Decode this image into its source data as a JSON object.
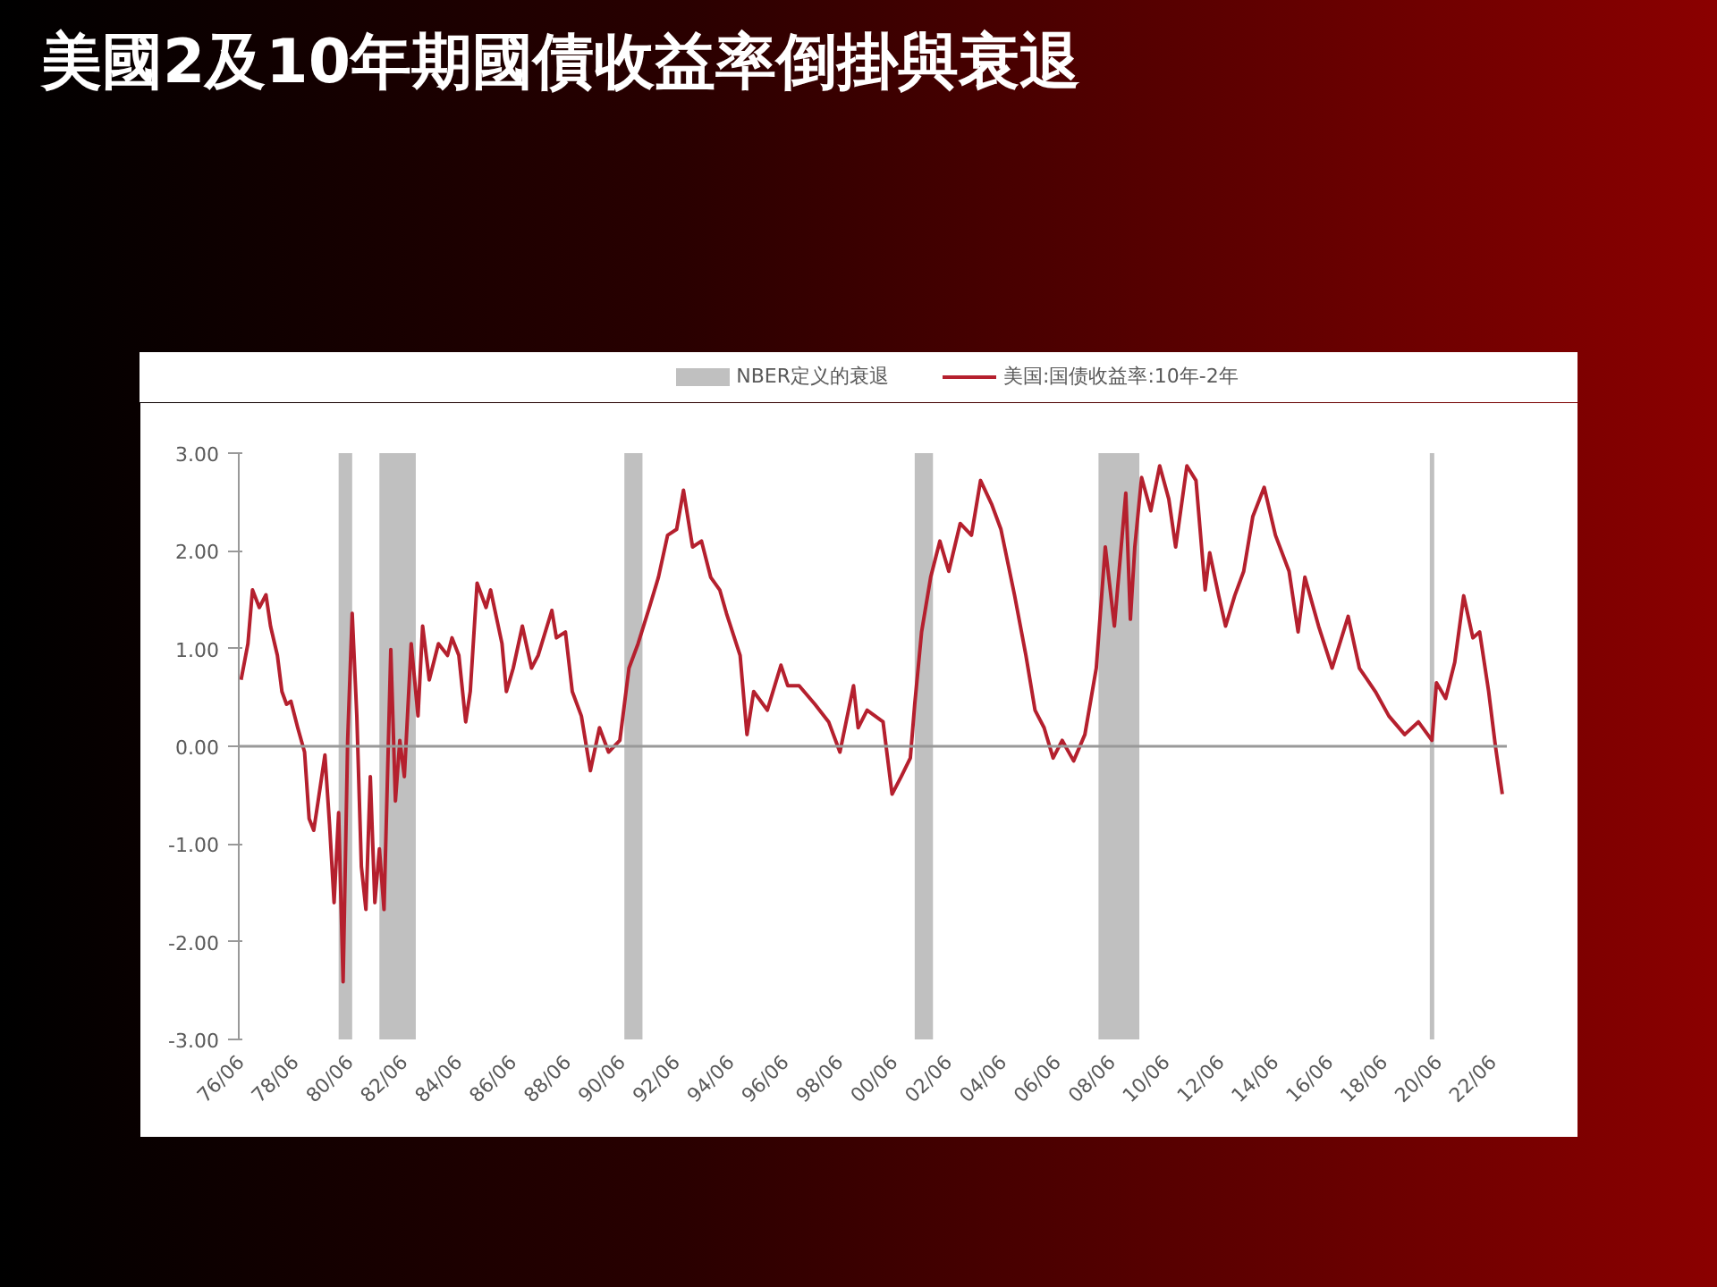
{
  "chart_data": {
    "type": "line",
    "title": "美國2及10年期國債收益率倒掛與衰退",
    "x": [
      "1976-06",
      "1976-09",
      "1976-11",
      "1977-02",
      "1977-05",
      "1977-07",
      "1977-10",
      "1977-12",
      "1978-02",
      "1978-04",
      "1978-07",
      "1978-10",
      "1978-12",
      "1979-02",
      "1979-04",
      "1979-07",
      "1979-09",
      "1979-11",
      "1980-01",
      "1980-03",
      "1980-05",
      "1980-07",
      "1980-09",
      "1980-11",
      "1981-01",
      "1981-03",
      "1981-05",
      "1981-07",
      "1981-09",
      "1981-12",
      "1982-02",
      "1982-04",
      "1982-06",
      "1982-09",
      "1982-12",
      "1983-02",
      "1983-05",
      "1983-09",
      "1984-01",
      "1984-03",
      "1984-06",
      "1984-09",
      "1984-11",
      "1985-02",
      "1985-06",
      "1985-08",
      "1986-01",
      "1986-03",
      "1986-06",
      "1986-10",
      "1987-02",
      "1987-05",
      "1987-11",
      "1988-01",
      "1988-05",
      "1988-08",
      "1988-12",
      "1989-04",
      "1989-08",
      "1989-12",
      "1990-05",
      "1990-09",
      "1991-01",
      "1991-06",
      "1991-10",
      "1992-02",
      "1992-06",
      "1992-09",
      "1993-01",
      "1993-05",
      "1993-09",
      "1994-01",
      "1994-04",
      "1994-10",
      "1995-01",
      "1995-04",
      "1995-10",
      "1996-04",
      "1996-07",
      "1996-12",
      "1997-07",
      "1998-01",
      "1998-06",
      "1998-12",
      "1999-02",
      "1999-06",
      "2000-01",
      "2000-05",
      "2000-09",
      "2001-01",
      "2001-03",
      "2001-06",
      "2001-10",
      "2002-02",
      "2002-06",
      "2002-11",
      "2003-04",
      "2003-08",
      "2004-01",
      "2004-05",
      "2004-11",
      "2005-04",
      "2005-08",
      "2005-12",
      "2006-04",
      "2006-08",
      "2007-01",
      "2007-06",
      "2007-11",
      "2008-03",
      "2008-07",
      "2008-12",
      "2009-02",
      "2009-04",
      "2009-07",
      "2009-11",
      "2010-03",
      "2010-07",
      "2010-10",
      "2011-03",
      "2011-07",
      "2011-11",
      "2012-01",
      "2012-05",
      "2012-08",
      "2012-12",
      "2013-04",
      "2013-08",
      "2014-01",
      "2014-06",
      "2014-12",
      "2015-04",
      "2015-07",
      "2016-01",
      "2016-07",
      "2017-02",
      "2017-07",
      "2018-02",
      "2018-08",
      "2019-03",
      "2019-09",
      "2020-03",
      "2020-05",
      "2020-09",
      "2021-01",
      "2021-05",
      "2021-09",
      "2021-12",
      "2022-04",
      "2022-07",
      "2022-10"
    ],
    "series": [
      {
        "name": "美国:国债收益率:10年-2年",
        "color": "#b5202e",
        "values": [
          0.68,
          1.05,
          1.6,
          1.42,
          1.55,
          1.23,
          0.93,
          0.56,
          0.43,
          0.46,
          0.19,
          -0.06,
          -0.74,
          -0.86,
          -0.56,
          -0.09,
          -0.8,
          -1.6,
          -0.68,
          -2.41,
          0.06,
          1.36,
          0.31,
          -1.23,
          -1.67,
          -0.31,
          -1.6,
          -1.05,
          -1.67,
          0.99,
          -0.56,
          0.06,
          -0.31,
          1.05,
          0.31,
          1.23,
          0.68,
          1.05,
          0.93,
          1.11,
          0.93,
          0.25,
          0.56,
          1.67,
          1.42,
          1.6,
          1.05,
          0.56,
          0.8,
          1.23,
          0.8,
          0.93,
          1.39,
          1.11,
          1.17,
          0.56,
          0.31,
          -0.25,
          0.19,
          -0.06,
          0.06,
          0.8,
          1.05,
          1.42,
          1.73,
          2.16,
          2.22,
          2.62,
          2.04,
          2.1,
          1.73,
          1.6,
          1.36,
          0.93,
          0.12,
          0.56,
          0.37,
          0.83,
          0.62,
          0.62,
          0.43,
          0.25,
          -0.06,
          0.62,
          0.19,
          0.37,
          0.25,
          -0.49,
          -0.31,
          -0.12,
          0.43,
          1.17,
          1.73,
          2.1,
          1.79,
          2.28,
          2.16,
          2.72,
          2.47,
          2.22,
          1.54,
          0.93,
          0.37,
          0.19,
          -0.12,
          0.06,
          -0.15,
          0.12,
          0.8,
          2.04,
          1.23,
          2.59,
          1.3,
          2.04,
          2.75,
          2.41,
          2.87,
          2.53,
          2.04,
          2.87,
          2.72,
          1.6,
          1.98,
          1.54,
          1.23,
          1.54,
          1.79,
          2.35,
          2.65,
          2.16,
          1.79,
          1.17,
          1.73,
          1.23,
          0.8,
          1.33,
          0.8,
          0.56,
          0.31,
          0.12,
          0.25,
          0.06,
          0.65,
          0.49,
          0.86,
          1.54,
          1.11,
          1.17,
          0.56,
          0.0,
          -0.49
        ]
      }
    ],
    "bands": [
      {
        "axis": "x",
        "from": "1980-01",
        "to": "1980-07",
        "label": "NBER定义的衰退",
        "color": "#c0c0c0"
      },
      {
        "axis": "x",
        "from": "1981-07",
        "to": "1982-11",
        "color": "#c0c0c0"
      },
      {
        "axis": "x",
        "from": "1990-07",
        "to": "1991-03",
        "color": "#c0c0c0"
      },
      {
        "axis": "x",
        "from": "2001-03",
        "to": "2001-11",
        "color": "#c0c0c0"
      },
      {
        "axis": "x",
        "from": "2007-12",
        "to": "2009-06",
        "color": "#c0c0c0"
      },
      {
        "axis": "x",
        "from": "2020-02",
        "to": "2020-04",
        "color": "#c0c0c0"
      }
    ],
    "ref_lines": [
      {
        "axis": "y",
        "value": 0,
        "color": "#999999"
      }
    ],
    "xlim": [
      "1976-05",
      "2022-12"
    ],
    "xticks": [
      {
        "value": "1976-06",
        "label": "76/06"
      },
      {
        "value": "1978-06",
        "label": "78/06"
      },
      {
        "value": "1980-06",
        "label": "80/06"
      },
      {
        "value": "1982-06",
        "label": "82/06"
      },
      {
        "value": "1984-06",
        "label": "84/06"
      },
      {
        "value": "1986-06",
        "label": "86/06"
      },
      {
        "value": "1988-06",
        "label": "88/06"
      },
      {
        "value": "1990-06",
        "label": "90/06"
      },
      {
        "value": "1992-06",
        "label": "92/06"
      },
      {
        "value": "1994-06",
        "label": "94/06"
      },
      {
        "value": "1996-06",
        "label": "96/06"
      },
      {
        "value": "1998-06",
        "label": "98/06"
      },
      {
        "value": "2000-06",
        "label": "00/06"
      },
      {
        "value": "2002-06",
        "label": "02/06"
      },
      {
        "value": "2004-06",
        "label": "04/06"
      },
      {
        "value": "2006-06",
        "label": "06/06"
      },
      {
        "value": "2008-06",
        "label": "08/06"
      },
      {
        "value": "2010-06",
        "label": "10/06"
      },
      {
        "value": "2012-06",
        "label": "12/06"
      },
      {
        "value": "2014-06",
        "label": "14/06"
      },
      {
        "value": "2016-06",
        "label": "16/06"
      },
      {
        "value": "2018-06",
        "label": "18/06"
      },
      {
        "value": "2020-06",
        "label": "20/06"
      },
      {
        "value": "2022-06",
        "label": "22/06"
      }
    ],
    "ylim": [
      -3,
      3
    ],
    "yticks": [
      {
        "value": -3,
        "label": "-3.00"
      },
      {
        "value": -2,
        "label": "-2.00"
      },
      {
        "value": -1,
        "label": "-1.00"
      },
      {
        "value": 0,
        "label": "0.00"
      },
      {
        "value": 1,
        "label": "1.00"
      },
      {
        "value": 2,
        "label": "2.00"
      },
      {
        "value": 3,
        "label": "3.00"
      }
    ],
    "grid": false,
    "legend": "top",
    "marker": "none",
    "line_style": "solid"
  }
}
